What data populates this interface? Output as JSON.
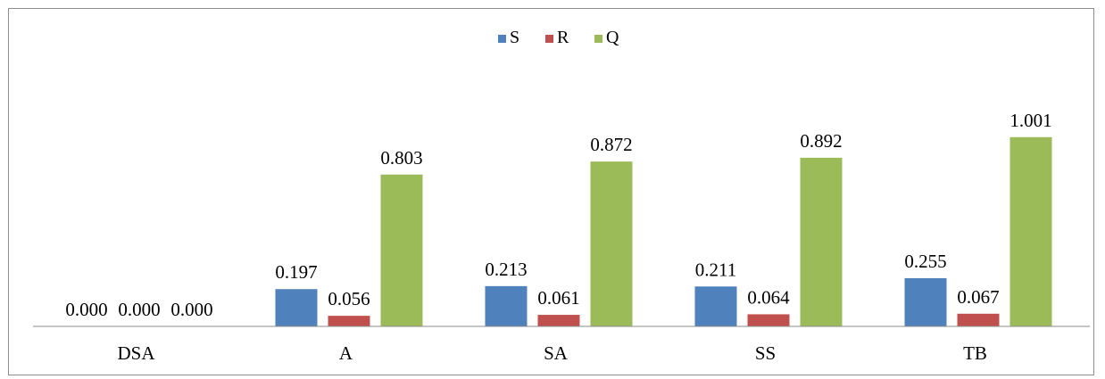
{
  "chart_data": {
    "type": "bar",
    "categories": [
      "DSA",
      "A",
      "SA",
      "SS",
      "TB"
    ],
    "series": [
      {
        "name": "S",
        "color": "#4F81BD",
        "values": [
          0.0,
          0.197,
          0.213,
          0.211,
          0.255
        ],
        "labels": [
          "0.000",
          "0.197",
          "0.213",
          "0.211",
          "0.255"
        ]
      },
      {
        "name": "R",
        "color": "#C0504D",
        "values": [
          0.0,
          0.056,
          0.061,
          0.064,
          0.067
        ],
        "labels": [
          "0.000",
          "0.056",
          "0.061",
          "0.064",
          "0.067"
        ]
      },
      {
        "name": "Q",
        "color": "#9BBB59",
        "values": [
          0.0,
          0.803,
          0.872,
          0.892,
          1.001
        ],
        "labels": [
          "0.000",
          "0.803",
          "0.872",
          "0.892",
          "1.001"
        ]
      }
    ],
    "legend_position": "top-center",
    "grid": false,
    "show_y_axis": false,
    "data_labels": true
  }
}
